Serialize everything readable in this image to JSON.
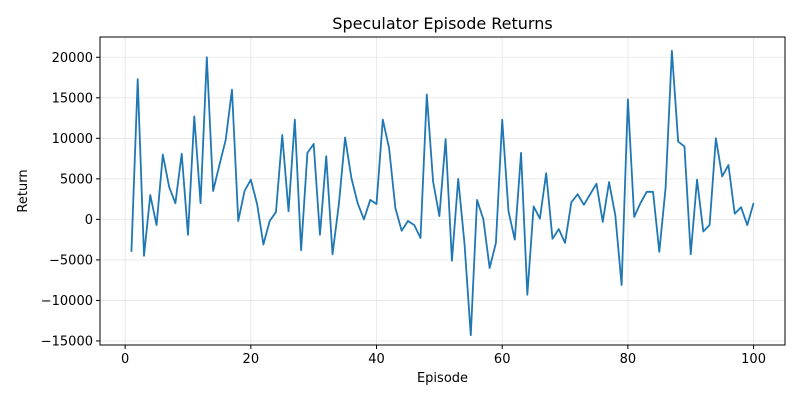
{
  "chart_data": {
    "type": "line",
    "title": "Speculator Episode Returns",
    "xlabel": "Episode",
    "ylabel": "Return",
    "xlim": [
      -4,
      105
    ],
    "ylim": [
      -15500,
      22500
    ],
    "xticks": [
      0,
      20,
      40,
      60,
      80,
      100
    ],
    "yticks": [
      -15000,
      -10000,
      -5000,
      0,
      5000,
      10000,
      15000,
      20000
    ],
    "grid": true,
    "legend": "none",
    "colors": {
      "line": "#1f77b4",
      "grid": "#e5e5e5",
      "axes": "#000000"
    },
    "series": [
      {
        "name": "",
        "x": [
          1,
          2,
          3,
          4,
          5,
          6,
          7,
          8,
          9,
          10,
          11,
          12,
          13,
          14,
          15,
          16,
          17,
          18,
          19,
          20,
          21,
          22,
          23,
          24,
          25,
          26,
          27,
          28,
          29,
          30,
          31,
          32,
          33,
          34,
          35,
          36,
          37,
          38,
          39,
          40,
          41,
          42,
          43,
          44,
          45,
          46,
          47,
          48,
          49,
          50,
          51,
          52,
          53,
          54,
          55,
          56,
          57,
          58,
          59,
          60,
          61,
          62,
          63,
          64,
          65,
          66,
          67,
          68,
          69,
          70,
          71,
          72,
          73,
          74,
          75,
          76,
          77,
          78,
          79,
          80,
          81,
          82,
          83,
          84,
          85,
          86,
          87,
          88,
          89,
          90,
          91,
          92,
          93,
          94,
          95,
          96,
          97,
          98,
          99,
          100
        ],
        "y": [
          -4000,
          17300,
          -4500,
          3000,
          -700,
          8000,
          4000,
          2000,
          8100,
          -1900,
          12700,
          2000,
          20000,
          3500,
          6700,
          9800,
          16000,
          -200,
          3500,
          4900,
          1900,
          -3100,
          -200,
          900,
          10400,
          1000,
          12300,
          -3800,
          8200,
          9300,
          -1900,
          7800,
          -4300,
          1800,
          10100,
          5100,
          2000,
          0,
          2400,
          1900,
          12300,
          8800,
          1400,
          -1400,
          -200,
          -700,
          -2300,
          15400,
          4700,
          400,
          9900,
          -5100,
          5000,
          -3000,
          -14300,
          2400,
          0,
          -6000,
          -2900,
          12300,
          1000,
          -2500,
          8200,
          -9300,
          1600,
          100,
          5700,
          -2400,
          -1200,
          -2900,
          2100,
          3100,
          1800,
          3100,
          4400,
          -300,
          4600,
          500,
          -8100,
          14800,
          300,
          2000,
          3400,
          3400,
          -4000,
          3900,
          20800,
          9600,
          9000,
          -4300,
          4900,
          -1500,
          -700,
          10000,
          5300,
          6700,
          700,
          1500,
          -700,
          2000
        ]
      }
    ]
  }
}
